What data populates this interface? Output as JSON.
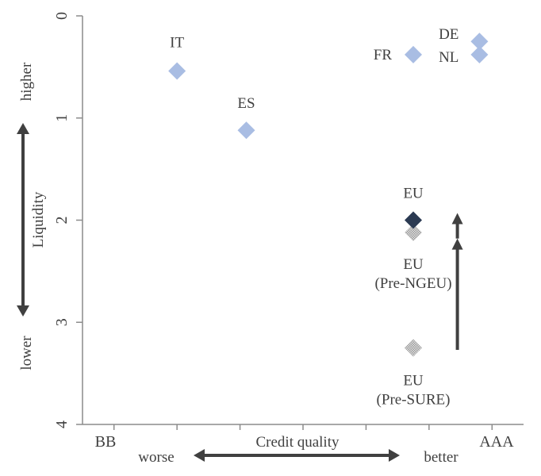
{
  "chart_data": {
    "type": "scatter",
    "title": "",
    "xlabel": "Credit quality",
    "ylabel": "Liquidity",
    "x_categories": [
      "BB",
      "AAA"
    ],
    "xlim": [
      0,
      7
    ],
    "ylim": [
      4,
      0
    ],
    "y_inverted": true,
    "y_ticks": [
      "0",
      "1",
      "2",
      "3",
      "4"
    ],
    "grid": false,
    "x_direction": {
      "left": "worse",
      "right": "better"
    },
    "y_direction": {
      "top": "higher",
      "bottom": "lower"
    },
    "points": [
      {
        "label": "IT",
        "x": 1.5,
        "y": 0.54,
        "color": "#a9bde3",
        "marker": "diamond"
      },
      {
        "label": "ES",
        "x": 2.6,
        "y": 1.12,
        "color": "#a9bde3",
        "marker": "diamond"
      },
      {
        "label": "FR",
        "x": 5.25,
        "y": 0.38,
        "color": "#a9bde3",
        "marker": "diamond"
      },
      {
        "label": "DE",
        "x": 6.3,
        "y": 0.25,
        "color": "#a9bde3",
        "marker": "diamond"
      },
      {
        "label": "NL",
        "x": 6.3,
        "y": 0.38,
        "color": "#a9bde3",
        "marker": "diamond"
      },
      {
        "label": "EU",
        "x": 5.25,
        "y": 2.0,
        "color": "#2b3a52",
        "marker": "diamond"
      },
      {
        "label": "EU\n(Pre-NGEU)",
        "x": 5.25,
        "y": 2.12,
        "color": "#c8c8c8",
        "marker": "diamond-hatched"
      },
      {
        "label": "EU\n(Pre-SURE)",
        "x": 5.25,
        "y": 3.25,
        "color": "#c8c8c8",
        "marker": "diamond-hatched"
      }
    ],
    "annotations": [
      {
        "type": "arrow",
        "from": {
          "x": 5.95,
          "y": 3.27
        },
        "to": {
          "x": 5.95,
          "y": 2.18
        }
      },
      {
        "type": "arrow",
        "from": {
          "x": 5.95,
          "y": 2.18
        },
        "to": {
          "x": 5.95,
          "y": 1.93
        }
      }
    ]
  }
}
